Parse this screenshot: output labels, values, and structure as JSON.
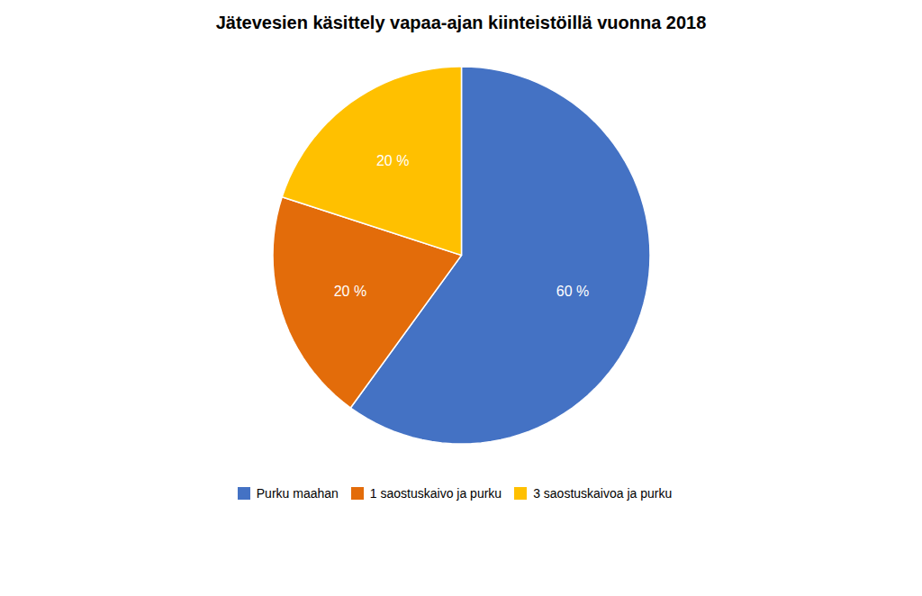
{
  "chart_data": {
    "type": "pie",
    "title": "Jätevesien käsittely vapaa-ajan kiinteistöillä vuonna 2018",
    "categories": [
      "Purku maahan",
      "1 saostuskaivo ja purku",
      "3 saostuskaivoa ja purku"
    ],
    "values": [
      60,
      20,
      20
    ],
    "value_labels": [
      "60 %",
      "20 %",
      "20 %"
    ],
    "colors": [
      "#4472C4",
      "#E36C0A",
      "#FFC000"
    ],
    "data_labels": true,
    "legend": "bottom"
  }
}
